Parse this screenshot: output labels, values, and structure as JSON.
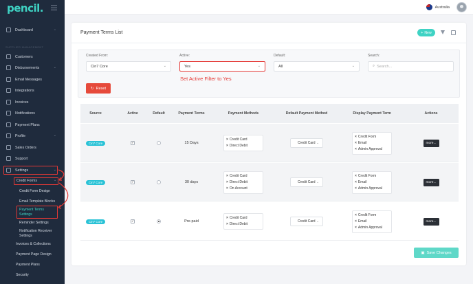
{
  "app": {
    "logo": "pencil."
  },
  "topbar": {
    "country": "Australia"
  },
  "sidebar": {
    "faded_label": "SUPPLIER MANAGEMENT",
    "items": [
      {
        "label": "Dashboard",
        "icon": "dashboard-icon",
        "has_chevron": true
      },
      {
        "label": "Customers",
        "icon": "users-icon"
      },
      {
        "label": "Disbursements",
        "icon": "disbursements-icon",
        "has_chevron": true
      },
      {
        "label": "Email Messages",
        "icon": "email-icon"
      },
      {
        "label": "Integrations",
        "icon": "link-icon"
      },
      {
        "label": "Invoices",
        "icon": "invoice-icon"
      },
      {
        "label": "Notifications",
        "icon": "bell-icon"
      },
      {
        "label": "Payment Plans",
        "icon": "payment-icon"
      },
      {
        "label": "Profile",
        "icon": "profile-icon",
        "has_chevron": true
      },
      {
        "label": "Sales Orders",
        "icon": "orders-icon"
      },
      {
        "label": "Support",
        "icon": "support-icon"
      },
      {
        "label": "Settings",
        "icon": "gear-icon",
        "has_chevron": true
      }
    ],
    "credit_forms": "Credit Forms",
    "sub_items": [
      "Credit Form Design",
      "Email Template Blocks",
      "Payment Terms Settings",
      "Reminder Settings",
      "Notification Receiver Settings"
    ],
    "sub_items_2": [
      "Invoices & Collections",
      "Payment Page Design",
      "Payment Plans",
      "Security"
    ]
  },
  "card": {
    "title": "Payment Terms List",
    "new_label": "New"
  },
  "filters": {
    "created_from": {
      "label": "Created From:",
      "value": "Cin7 Core"
    },
    "active": {
      "label": "Active:",
      "value": "Yes"
    },
    "default": {
      "label": "Default:",
      "value": "All"
    },
    "search": {
      "label": "Search:",
      "placeholder": "Search..."
    },
    "reset_label": "Reset",
    "annotation": "Set Active Filter to Yes"
  },
  "table": {
    "headers": [
      "Source",
      "Active",
      "Default",
      "Payment Terms",
      "Payment Methods",
      "Default Payment Method",
      "Display Payment Term",
      "Actions"
    ],
    "rows": [
      {
        "source": "Cin7 Core",
        "active": true,
        "default": false,
        "terms": "15 Days",
        "methods": [
          "Credit Card",
          "Direct Debit"
        ],
        "default_method": "Credit Card",
        "display": [
          "Credit Form",
          "Email",
          "Admin Approval"
        ],
        "action": "more..."
      },
      {
        "source": "Cin7 Core",
        "active": true,
        "default": false,
        "terms": "30 days",
        "methods": [
          "Credit Card",
          "Direct Debit",
          "On Account"
        ],
        "default_method": "Credit Card",
        "display": [
          "Credit Form",
          "Email",
          "Admin Approval"
        ],
        "action": "more..."
      },
      {
        "source": "Cin7 Core",
        "active": true,
        "default": true,
        "terms": "Pre-paid",
        "methods": [
          "Credit Card",
          "Direct Debit"
        ],
        "default_method": "Credit Card",
        "display": [
          "Credit Form",
          "Email",
          "Admin Approval"
        ],
        "action": "more..."
      }
    ]
  },
  "save_label": "Save Changes",
  "colors": {
    "accent": "#3fd3c4",
    "annotation": "#e53935",
    "sidebar": "#1f2b3d",
    "reset": "#e64a3b"
  }
}
